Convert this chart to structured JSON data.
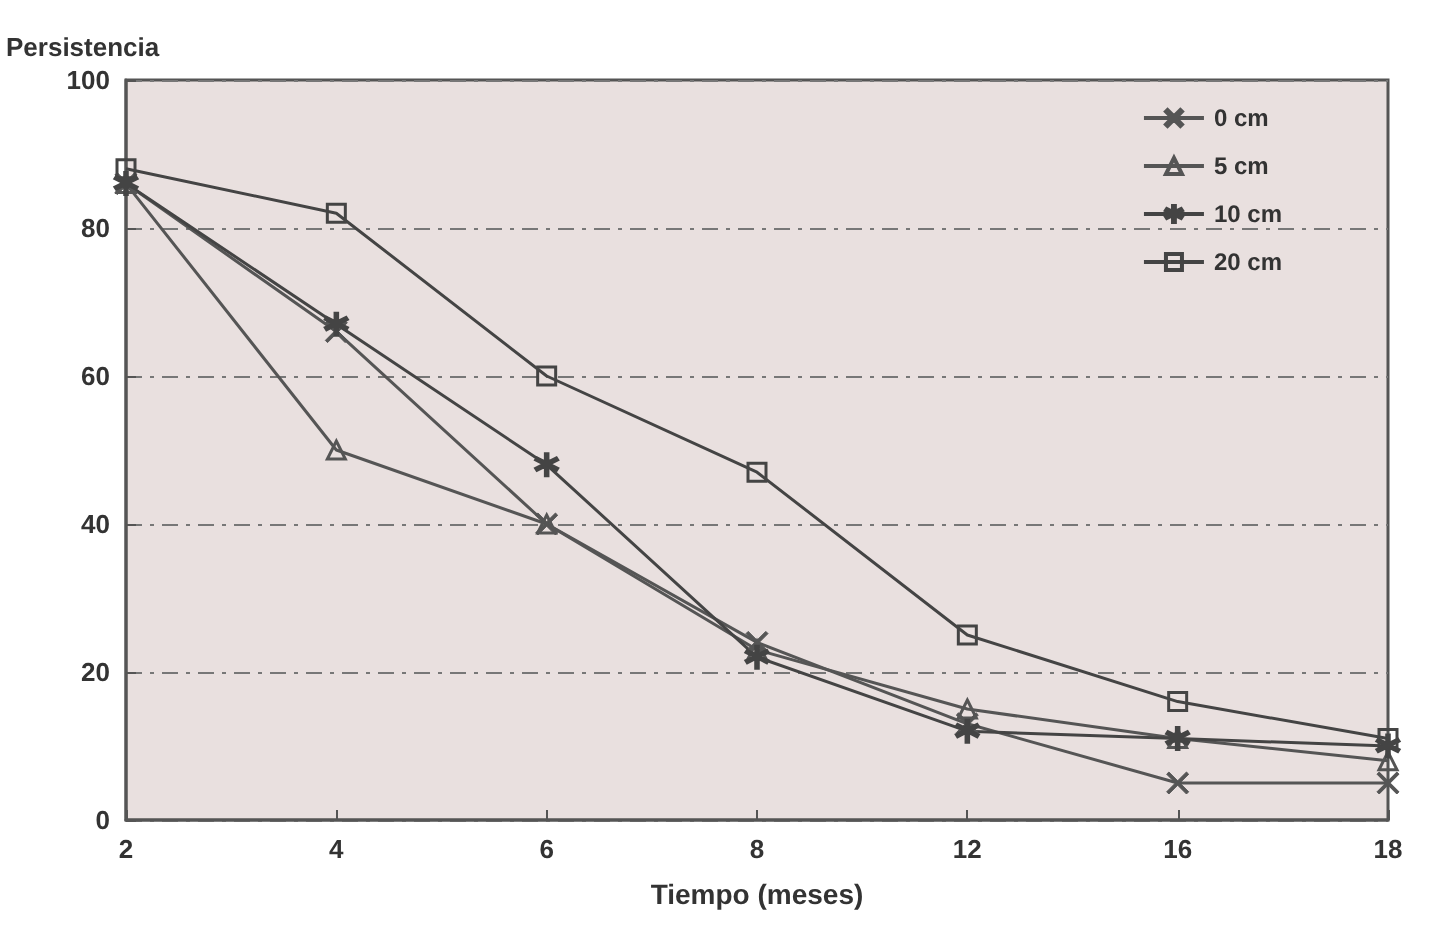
{
  "chart_data": {
    "type": "line",
    "ylabel": "Persistencia",
    "xlabel": "Tiempo (meses)",
    "categories": [
      "2",
      "4",
      "6",
      "8",
      "12",
      "16",
      "18"
    ],
    "ylim": [
      0,
      100
    ],
    "yticks": [
      0,
      20,
      40,
      60,
      80,
      100
    ],
    "grid": "y",
    "legend": "top right",
    "line_style": "solid",
    "series": [
      {
        "name": "0 cm",
        "color": "#555555",
        "marker": "cross",
        "values": [
          86,
          66,
          40,
          24,
          13,
          5,
          5
        ]
      },
      {
        "name": "5 cm",
        "color": "#555555",
        "marker": "triangle",
        "values": [
          86,
          50,
          40,
          23,
          15,
          11,
          8
        ]
      },
      {
        "name": "10 cm",
        "color": "#444444",
        "marker": "star",
        "values": [
          86,
          67,
          48,
          22,
          12,
          11,
          10
        ]
      },
      {
        "name": "20 cm",
        "color": "#444444",
        "marker": "square",
        "values": [
          88,
          82,
          60,
          47,
          25,
          16,
          11
        ]
      }
    ]
  }
}
